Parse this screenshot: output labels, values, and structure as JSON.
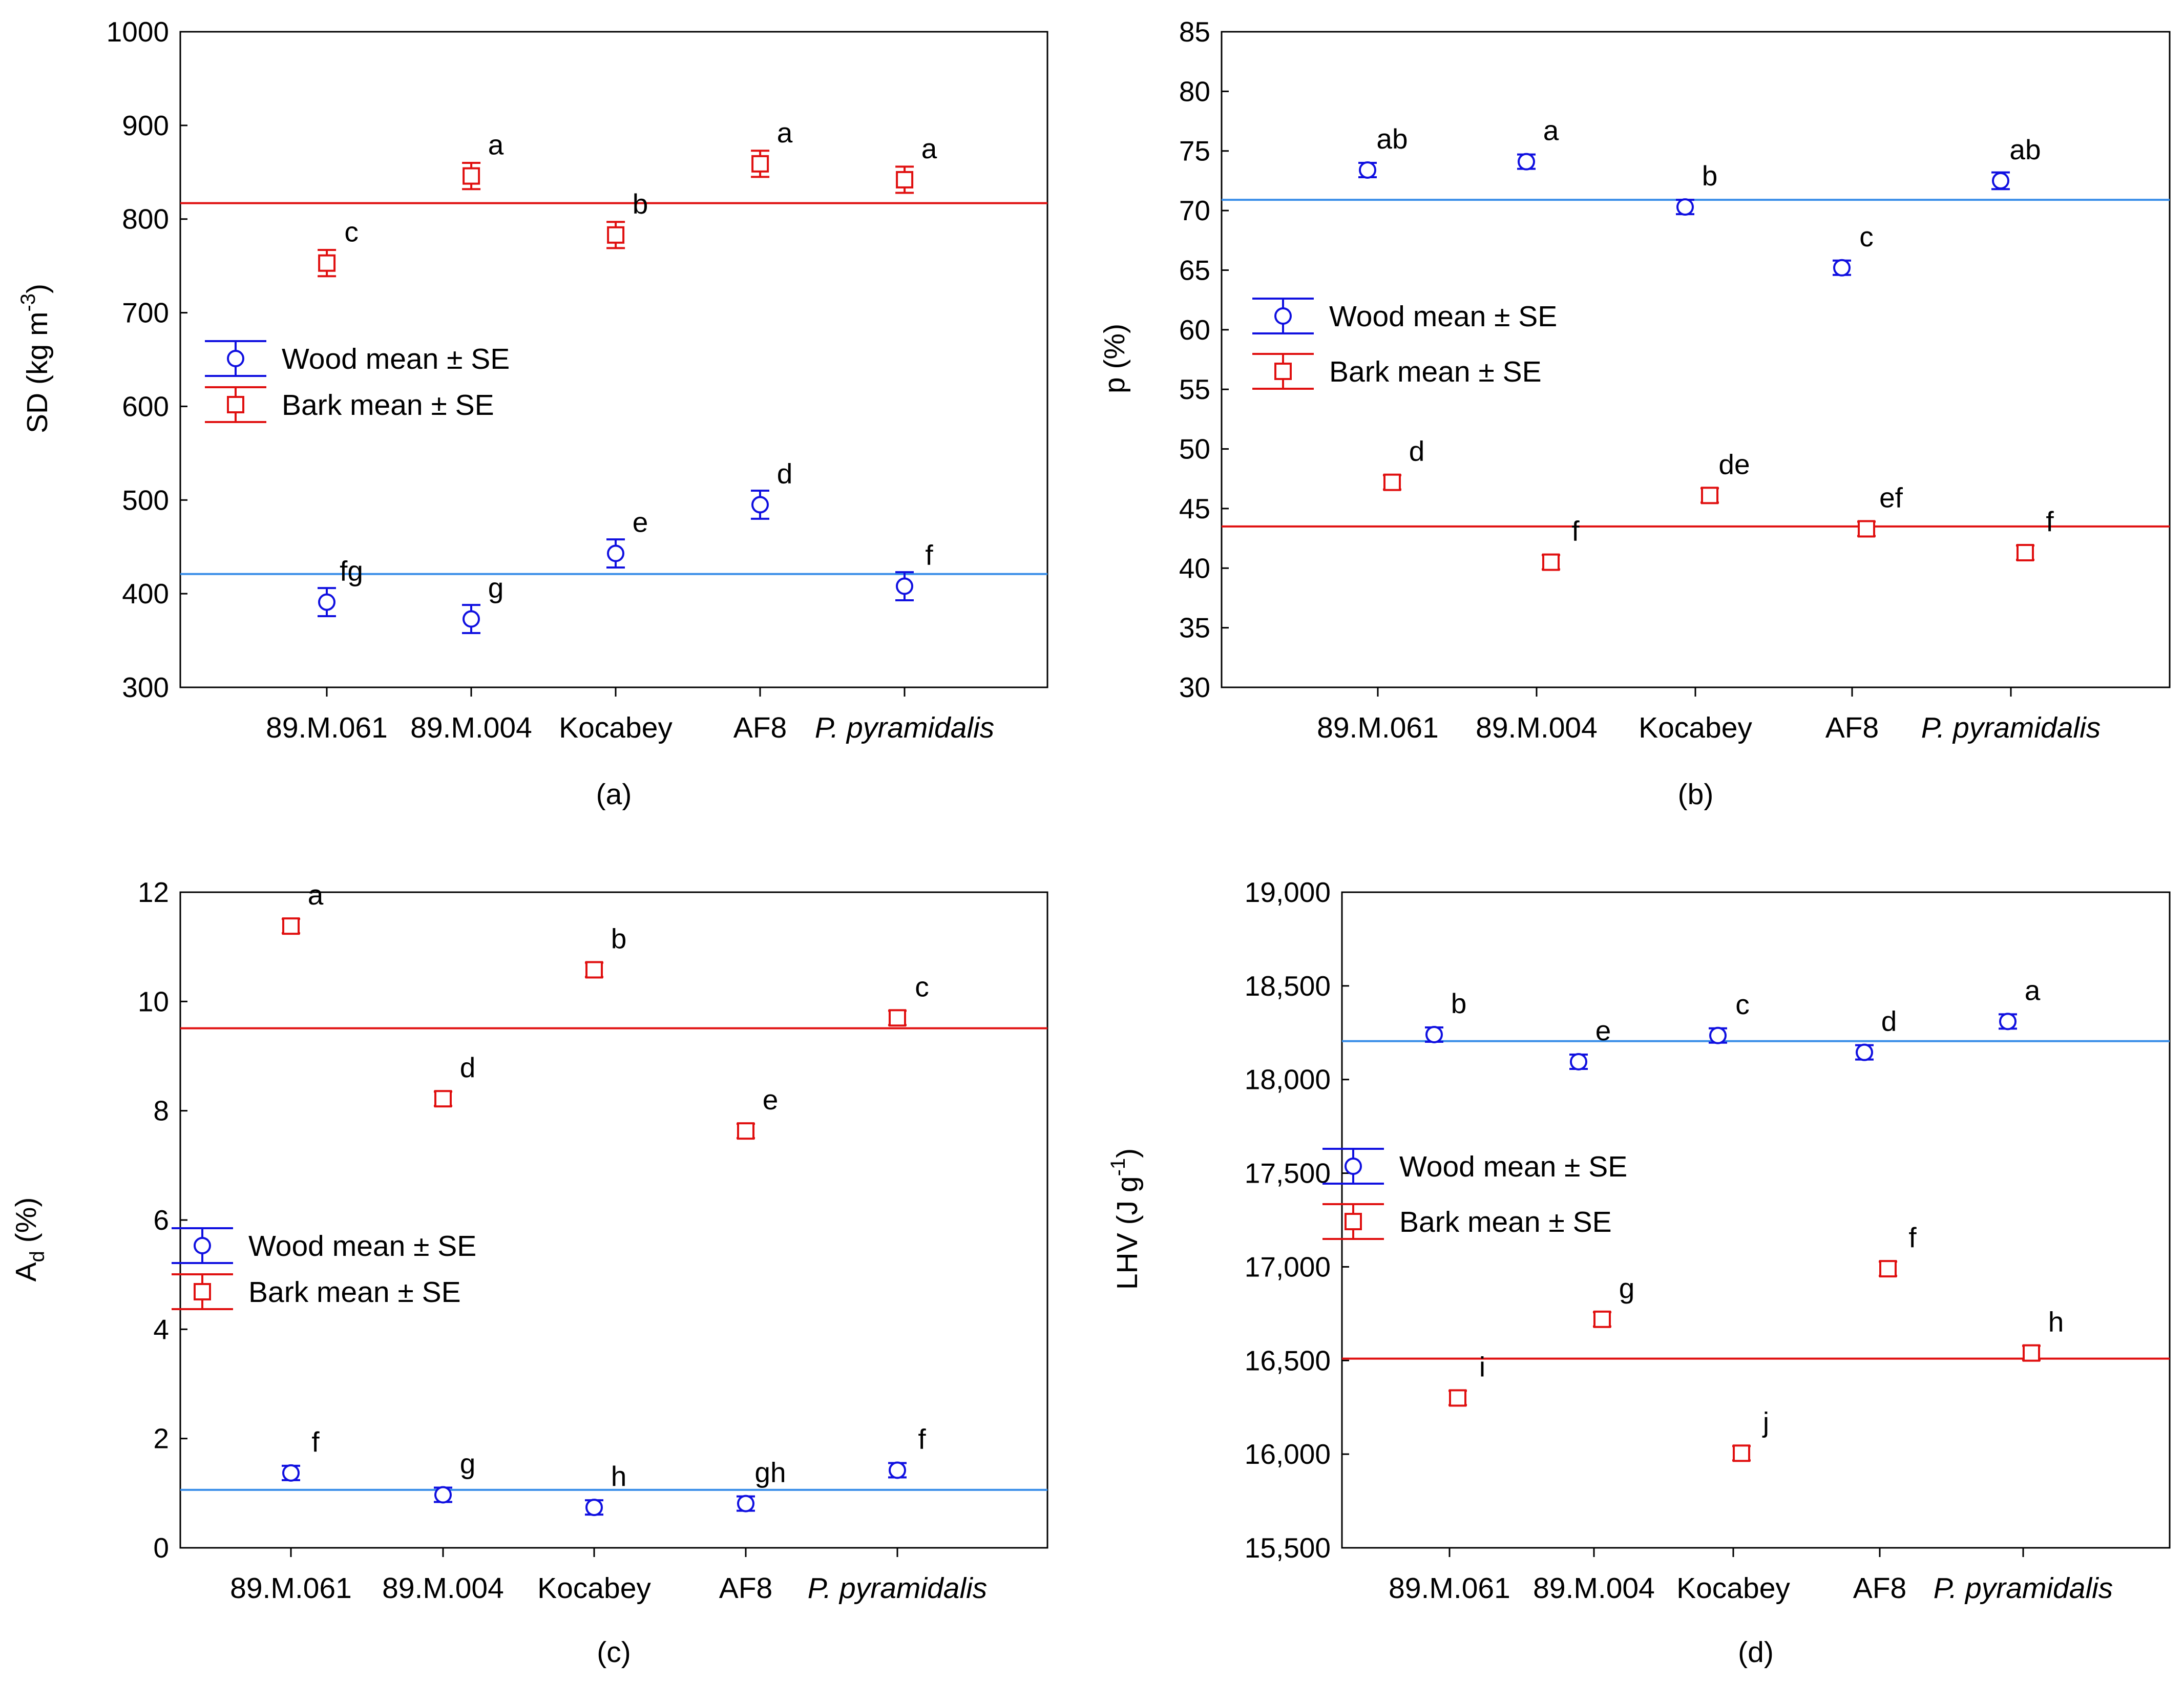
{
  "colors": {
    "wood": "#1010e0",
    "bark": "#e01010",
    "wood_line": "#3a8ee8",
    "bark_line": "#e01010"
  },
  "legend": {
    "wood": "Wood mean ± SE",
    "bark": "Bark mean ± SE"
  },
  "chart_data": [
    {
      "type": "scatter",
      "panel": "(a)",
      "ylabel": "SD (kg m-3)",
      "ylabel_parts": {
        "base": "SD (kg m",
        "sup": "-3",
        "close": ")"
      },
      "ylim": [
        300,
        1000
      ],
      "yticks": [
        300,
        400,
        500,
        600,
        700,
        800,
        900,
        1000
      ],
      "ytick_labels": [
        "300",
        "400",
        "500",
        "600",
        "700",
        "800",
        "900",
        "1000"
      ],
      "categories": [
        "89.M.061",
        "89.M.004",
        "Kocabey",
        "AF8",
        "P. pyramidalis"
      ],
      "legend_position": "middle-left",
      "series": [
        {
          "name": "Wood mean ± SE",
          "marker": "circle",
          "values": [
            391,
            373,
            443,
            495,
            408
          ],
          "se": [
            15,
            15,
            15,
            15,
            15
          ],
          "letters": [
            "fg",
            "g",
            "e",
            "d",
            "f"
          ],
          "mean_line": 421
        },
        {
          "name": "Bark mean ± SE",
          "marker": "square",
          "values": [
            753,
            846,
            783,
            859,
            842
          ],
          "se": [
            14,
            14,
            14,
            14,
            14
          ],
          "letters": [
            "c",
            "a",
            "b",
            "a",
            "a"
          ],
          "mean_line": 817
        }
      ]
    },
    {
      "type": "scatter",
      "panel": "(b)",
      "ylabel": "p (%)",
      "ylabel_parts": {
        "base": "p (%)",
        "sup": "",
        "close": ""
      },
      "ylim": [
        30,
        85
      ],
      "yticks": [
        30,
        35,
        40,
        45,
        50,
        55,
        60,
        65,
        70,
        75,
        80,
        85
      ],
      "ytick_labels": [
        "30",
        "35",
        "40",
        "45",
        "50",
        "55",
        "60",
        "65",
        "70",
        "75",
        "80",
        "85"
      ],
      "categories": [
        "89.M.061",
        "89.M.004",
        "Kocabey",
        "AF8",
        "P. pyramidalis"
      ],
      "legend_position": "middle-left",
      "series": [
        {
          "name": "Wood mean ± SE",
          "marker": "circle",
          "values": [
            73.4,
            74.1,
            70.3,
            65.2,
            72.5
          ],
          "se": [
            0.4,
            0.4,
            0.4,
            0.4,
            0.7
          ],
          "letters": [
            "ab",
            "a",
            "b",
            "c",
            "ab"
          ],
          "mean_line": 70.9
        },
        {
          "name": "Bark mean ± SE",
          "marker": "square",
          "values": [
            47.2,
            40.5,
            46.1,
            43.3,
            41.3
          ],
          "se": [
            0.5,
            0.5,
            0.5,
            0.5,
            0.5
          ],
          "letters": [
            "d",
            "f",
            "de",
            "ef",
            "f"
          ],
          "mean_line": 43.5
        }
      ]
    },
    {
      "type": "scatter",
      "panel": "(c)",
      "ylabel": "Ad (%)",
      "ylabel_parts": {
        "base": "A",
        "sub": "d",
        "close": " (%)"
      },
      "ylim": [
        0,
        12
      ],
      "yticks": [
        0,
        2,
        4,
        6,
        8,
        10,
        12
      ],
      "ytick_labels": [
        "0",
        "2",
        "4",
        "6",
        "8",
        "10",
        "12"
      ],
      "categories": [
        "89.M.061",
        "89.M.004",
        "Kocabey",
        "AF8",
        "P. pyramidalis"
      ],
      "legend_position": "middle-left",
      "series": [
        {
          "name": "Wood mean ± SE",
          "marker": "circle",
          "values": [
            1.37,
            0.97,
            0.74,
            0.81,
            1.42
          ],
          "se": [
            0.05,
            0.05,
            0.05,
            0.05,
            0.05
          ],
          "letters": [
            "f",
            "g",
            "h",
            "gh",
            "f"
          ],
          "mean_line": 1.06
        },
        {
          "name": "Bark mean ± SE",
          "marker": "square",
          "values": [
            11.38,
            8.22,
            10.58,
            7.63,
            9.7
          ],
          "se": [
            0.12,
            0.12,
            0.12,
            0.12,
            0.12
          ],
          "letters": [
            "a",
            "d",
            "b",
            "e",
            "c"
          ],
          "mean_line": 9.51
        }
      ]
    },
    {
      "type": "scatter",
      "panel": "(d)",
      "ylabel": "LHV (J g-1)",
      "ylabel_parts": {
        "base": "LHV (J g",
        "sup": "-1",
        "close": ")"
      },
      "ylim": [
        15500,
        19000
      ],
      "yticks": [
        15500,
        16000,
        16500,
        17000,
        17500,
        18000,
        18500,
        19000
      ],
      "ytick_labels": [
        "15,500",
        "16,000",
        "16,500",
        "17,000",
        "17,500",
        "18,000",
        "18,500",
        "19,000"
      ],
      "categories": [
        "89.M.061",
        "89.M.004",
        "Kocabey",
        "AF8",
        "P. pyramidalis"
      ],
      "legend_position": "middle-left",
      "series": [
        {
          "name": "Wood mean ± SE",
          "marker": "circle",
          "values": [
            18240,
            18095,
            18235,
            18145,
            18310
          ],
          "se": [
            25,
            25,
            25,
            25,
            25
          ],
          "letters": [
            "b",
            "e",
            "c",
            "d",
            "a"
          ],
          "mean_line": 18205
        },
        {
          "name": "Bark mean ± SE",
          "marker": "square",
          "values": [
            16300,
            16720,
            16005,
            16990,
            16540
          ],
          "se": [
            35,
            35,
            35,
            35,
            35
          ],
          "letters": [
            "i",
            "g",
            "j",
            "f",
            "h"
          ],
          "mean_line": 16510
        }
      ]
    }
  ]
}
